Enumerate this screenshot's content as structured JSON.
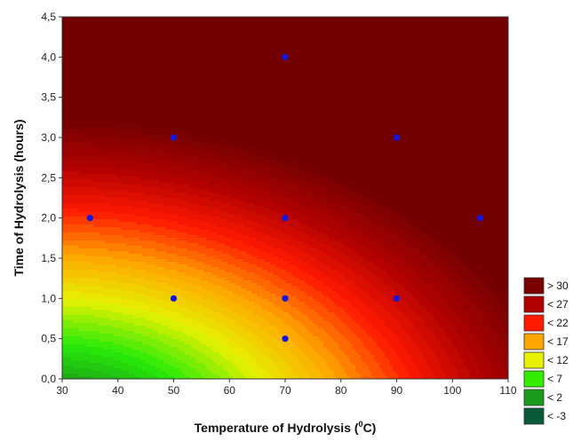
{
  "chart_data": {
    "type": "heatmap",
    "subtype": "contour",
    "xlabel": "Temperature of Hydrolysis (",
    "xlabel_super": "0",
    "xlabel_end": "C)",
    "ylabel": "Time of Hydrolysis (hours)",
    "xlim": [
      30,
      110
    ],
    "ylim": [
      0,
      4.5
    ],
    "x_ticks": [
      "30",
      "40",
      "50",
      "60",
      "70",
      "80",
      "90",
      "100",
      "110"
    ],
    "y_ticks": [
      "0,0",
      "0,5",
      "1,0",
      "1,5",
      "2,0",
      "2,5",
      "3,0",
      "3,5",
      "4,0",
      "4,5"
    ],
    "points": [
      {
        "x": 35,
        "y": 2.0
      },
      {
        "x": 50,
        "y": 3.0
      },
      {
        "x": 50,
        "y": 1.0
      },
      {
        "x": 70,
        "y": 4.0
      },
      {
        "x": 70,
        "y": 2.0
      },
      {
        "x": 70,
        "y": 1.0
      },
      {
        "x": 70,
        "y": 0.5
      },
      {
        "x": 90,
        "y": 3.0
      },
      {
        "x": 90,
        "y": 1.0
      },
      {
        "x": 105,
        "y": 2.0
      }
    ],
    "point_color": "#1515e0",
    "legend_placement": "bottom-right",
    "legend": [
      {
        "label": "> 30",
        "color": "#7a0000"
      },
      {
        "label": "< 27",
        "color": "#b00000"
      },
      {
        "label": "< 22",
        "color": "#ff1a00"
      },
      {
        "label": "< 17",
        "color": "#ffa500"
      },
      {
        "label": "< 12",
        "color": "#e6f000"
      },
      {
        "label": "< 7",
        "color": "#33ee00"
      },
      {
        "label": "< 2",
        "color": "#1a9a1a"
      },
      {
        "label": "< -3",
        "color": "#0a5a3a"
      }
    ],
    "grid": false
  }
}
